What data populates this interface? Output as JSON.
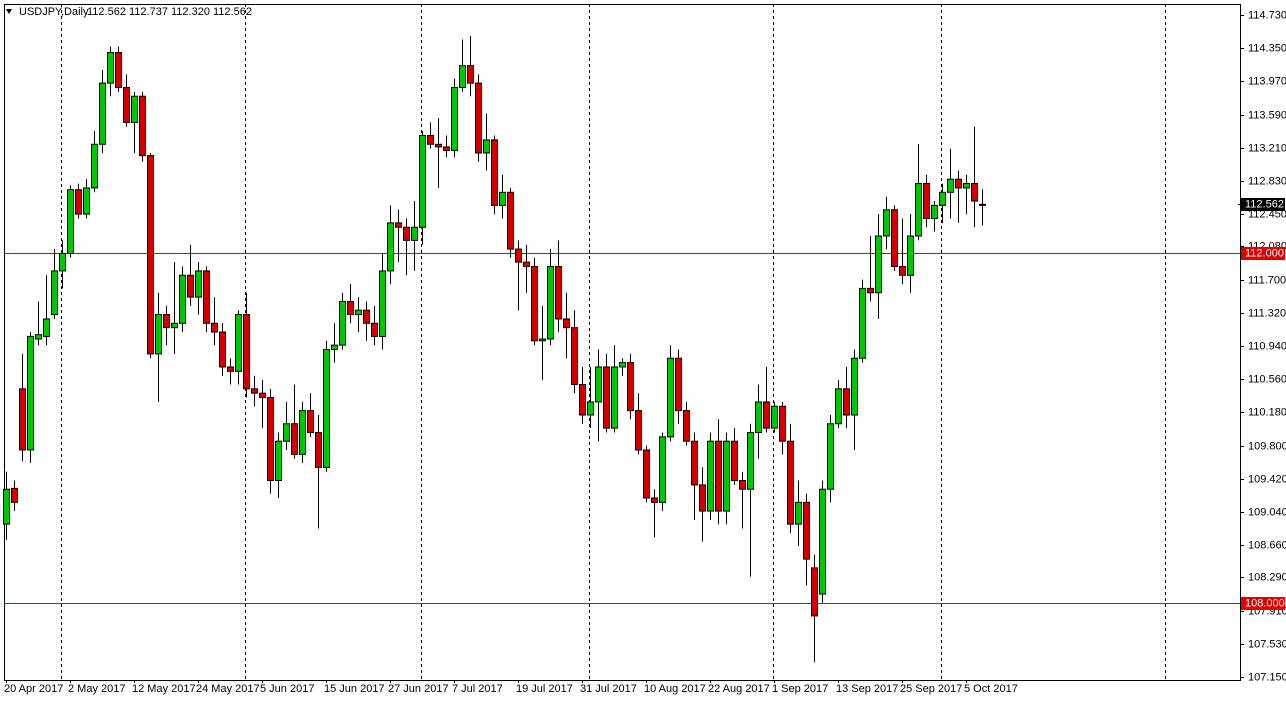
{
  "chart_data": {
    "type": "candlestick",
    "title": "USDJPY,Daily",
    "header_values": "112.562 112.737 112.320 112.562",
    "categories": [
      "20 Apr 2017",
      null,
      null,
      null,
      null,
      null,
      null,
      null,
      "2 May 2017",
      null,
      null,
      null,
      null,
      null,
      null,
      null,
      "12 May 2017",
      null,
      null,
      null,
      null,
      null,
      null,
      null,
      "24 May 2017",
      null,
      null,
      null,
      null,
      null,
      null,
      null,
      "5 Jun 2017",
      null,
      null,
      null,
      null,
      null,
      null,
      null,
      "15 Jun 2017",
      null,
      null,
      null,
      null,
      null,
      null,
      null,
      "27 Jun 2017",
      null,
      null,
      null,
      null,
      null,
      null,
      null,
      "7 Jul 2017",
      null,
      null,
      null,
      null,
      null,
      null,
      null,
      "19 Jul 2017",
      null,
      null,
      null,
      null,
      null,
      null,
      null,
      "31 Jul 2017",
      null,
      null,
      null,
      null,
      null,
      null,
      null,
      "10 Aug 2017",
      null,
      null,
      null,
      null,
      null,
      null,
      null,
      "22 Aug 2017",
      null,
      null,
      null,
      null,
      null,
      null,
      null,
      "1 Sep 2017",
      null,
      null,
      null,
      null,
      null,
      null,
      null,
      "13 Sep 2017",
      null,
      null,
      null,
      null,
      null,
      null,
      null,
      "25 Sep 2017",
      null,
      null,
      null,
      null,
      null,
      null,
      null,
      "5 Oct 2017",
      null,
      null
    ],
    "open": [
      108.9,
      109.31,
      110.45,
      109.75,
      111.02,
      111.05,
      111.3,
      111.8,
      112.0,
      112.73,
      112.45,
      112.75,
      113.25,
      113.95,
      114.3,
      113.9,
      113.5,
      113.8,
      113.12,
      110.85,
      111.3,
      111.15,
      111.2,
      111.75,
      111.5,
      111.8,
      111.2,
      111.1,
      110.7,
      110.65,
      111.3,
      110.45,
      110.4,
      110.35,
      109.4,
      109.85,
      110.05,
      109.7,
      110.2,
      109.95,
      109.55,
      110.9,
      110.95,
      111.45,
      111.3,
      111.35,
      111.2,
      111.05,
      111.8,
      112.35,
      112.3,
      112.15,
      112.3,
      113.35,
      113.25,
      113.22,
      113.18,
      113.9,
      114.15,
      113.95,
      113.15,
      113.3,
      112.55,
      112.7,
      112.05,
      111.9,
      111.85,
      111.0,
      111.02,
      111.85,
      111.25,
      111.15,
      110.5,
      110.15,
      110.3,
      110.7,
      110.0,
      110.7,
      110.75,
      110.2,
      109.75,
      109.2,
      109.15,
      109.9,
      110.8,
      110.2,
      109.85,
      109.35,
      109.05,
      109.85,
      109.05,
      109.85,
      109.4,
      109.3,
      109.95,
      110.3,
      110.0,
      110.25,
      109.85,
      108.9,
      109.15,
      108.4,
      108.1,
      109.3,
      110.05,
      110.45,
      110.15,
      110.8,
      111.6,
      111.55,
      112.2,
      112.5,
      111.85,
      111.75,
      112.2,
      112.8,
      112.4,
      112.55,
      112.7,
      112.85,
      112.75,
      112.8,
      112.562
    ],
    "high": [
      109.5,
      109.4,
      110.85,
      111.1,
      111.45,
      111.75,
      112.05,
      112.15,
      112.78,
      112.8,
      112.85,
      113.4,
      114.1,
      114.37,
      114.37,
      114.05,
      113.85,
      113.85,
      113.15,
      111.55,
      111.4,
      111.9,
      111.85,
      112.1,
      111.9,
      111.85,
      111.5,
      111.2,
      110.8,
      111.35,
      111.55,
      110.6,
      110.55,
      110.45,
      109.95,
      110.3,
      110.5,
      110.3,
      110.4,
      110.15,
      111.0,
      111.2,
      111.55,
      111.65,
      111.5,
      111.45,
      111.4,
      112.0,
      112.55,
      112.5,
      112.4,
      112.6,
      113.4,
      113.5,
      113.55,
      113.35,
      114.0,
      114.45,
      114.49,
      114.05,
      113.6,
      113.35,
      112.9,
      112.75,
      112.15,
      112.1,
      111.95,
      111.4,
      112.05,
      112.15,
      111.55,
      111.35,
      110.7,
      110.7,
      110.9,
      110.85,
      110.95,
      110.8,
      110.85,
      110.4,
      109.8,
      109.3,
      109.95,
      110.95,
      110.9,
      110.3,
      109.95,
      109.55,
      109.95,
      110.1,
      109.95,
      110.0,
      109.5,
      110.05,
      110.5,
      110.7,
      110.3,
      110.3,
      110.05,
      109.4,
      109.25,
      108.55,
      109.4,
      110.15,
      110.55,
      110.7,
      110.9,
      111.7,
      112.2,
      112.45,
      112.65,
      112.55,
      112.4,
      112.45,
      113.25,
      112.9,
      112.6,
      112.8,
      113.2,
      112.95,
      112.9,
      113.45,
      112.737
    ],
    "low": [
      108.72,
      109.05,
      109.62,
      109.6,
      110.95,
      110.95,
      111.25,
      111.6,
      111.95,
      112.4,
      112.4,
      112.7,
      113.15,
      113.8,
      113.85,
      113.45,
      113.15,
      113.05,
      110.8,
      110.3,
      110.95,
      110.85,
      111.1,
      111.4,
      111.3,
      111.1,
      110.95,
      110.6,
      110.5,
      110.5,
      110.35,
      110.25,
      110.0,
      109.25,
      109.2,
      109.75,
      109.65,
      109.6,
      109.9,
      108.85,
      109.5,
      110.75,
      110.9,
      111.2,
      111.1,
      111.0,
      110.95,
      110.9,
      111.65,
      111.9,
      111.75,
      111.8,
      112.1,
      113.2,
      112.75,
      113.1,
      113.1,
      113.85,
      113.8,
      113.05,
      112.95,
      112.45,
      112.4,
      111.95,
      111.35,
      111.55,
      110.95,
      110.55,
      110.95,
      111.1,
      110.8,
      110.4,
      110.05,
      110.0,
      109.85,
      109.95,
      109.95,
      110.6,
      110.1,
      109.7,
      109.15,
      108.75,
      109.05,
      109.85,
      110.05,
      109.8,
      108.95,
      108.7,
      108.95,
      108.9,
      108.9,
      109.35,
      108.85,
      108.3,
      109.65,
      109.95,
      109.95,
      109.7,
      108.8,
      108.65,
      108.2,
      107.32,
      108.0,
      109.15,
      110.0,
      110.0,
      109.75,
      110.75,
      111.45,
      111.25,
      112.05,
      111.8,
      111.65,
      111.55,
      112.15,
      112.3,
      112.25,
      112.35,
      112.4,
      112.35,
      112.45,
      112.3,
      112.32
    ],
    "close": [
      109.3,
      109.15,
      109.75,
      111.05,
      111.07,
      111.25,
      111.8,
      112.0,
      112.73,
      112.45,
      112.75,
      113.25,
      113.95,
      114.3,
      113.9,
      113.5,
      113.8,
      113.12,
      110.85,
      111.3,
      111.15,
      111.2,
      111.75,
      111.5,
      111.8,
      111.2,
      111.1,
      110.7,
      110.65,
      111.3,
      110.45,
      110.4,
      110.35,
      109.4,
      109.85,
      110.05,
      109.7,
      110.2,
      109.95,
      109.55,
      110.9,
      110.95,
      111.45,
      111.3,
      111.35,
      111.2,
      111.05,
      111.8,
      112.35,
      112.3,
      112.15,
      112.3,
      113.35,
      113.25,
      113.22,
      113.18,
      113.9,
      114.15,
      113.95,
      113.15,
      113.3,
      112.55,
      112.7,
      112.05,
      111.9,
      111.85,
      111.0,
      111.02,
      111.85,
      111.25,
      111.15,
      110.5,
      110.15,
      110.3,
      110.7,
      110.0,
      110.7,
      110.75,
      110.2,
      109.75,
      109.2,
      109.15,
      109.9,
      110.8,
      110.2,
      109.85,
      109.35,
      109.05,
      109.85,
      109.05,
      109.85,
      109.4,
      109.3,
      109.95,
      110.3,
      110.0,
      110.25,
      109.85,
      108.9,
      109.15,
      108.5,
      107.85,
      109.3,
      110.05,
      110.45,
      110.15,
      110.8,
      111.6,
      111.55,
      112.2,
      112.5,
      111.85,
      111.75,
      112.2,
      112.8,
      112.4,
      112.55,
      112.7,
      112.85,
      112.75,
      112.8,
      112.6,
      112.562
    ],
    "up_color": "#00c800",
    "down_color": "#d40000",
    "ylim": [
      107.116,
      114.856
    ],
    "yticks": [
      {
        "value": 114.73,
        "label": "114.730"
      },
      {
        "value": 114.35,
        "label": "114.350"
      },
      {
        "value": 113.97,
        "label": "113.970"
      },
      {
        "value": 113.59,
        "label": "113.590"
      },
      {
        "value": 113.21,
        "label": "113.210"
      },
      {
        "value": 112.83,
        "label": "112.830"
      },
      {
        "value": 112.45,
        "label": "112.450"
      },
      {
        "value": 112.08,
        "label": "112.080"
      },
      {
        "value": 111.7,
        "label": "111.700"
      },
      {
        "value": 111.32,
        "label": "111.320"
      },
      {
        "value": 110.94,
        "label": "110.940"
      },
      {
        "value": 110.56,
        "label": "110.560"
      },
      {
        "value": 110.18,
        "label": "110.180"
      },
      {
        "value": 109.8,
        "label": "109.800"
      },
      {
        "value": 109.42,
        "label": "109.420"
      },
      {
        "value": 109.04,
        "label": "109.040"
      },
      {
        "value": 108.66,
        "label": "108.660"
      },
      {
        "value": 108.29,
        "label": "108.290"
      },
      {
        "value": 107.91,
        "label": "107.910"
      },
      {
        "value": 107.53,
        "label": "107.530"
      },
      {
        "value": 107.15,
        "label": "107.150"
      }
    ],
    "horizontal_lines": [
      {
        "value": 112,
        "label": "112.000"
      },
      {
        "value": 108,
        "label": "108.000"
      }
    ],
    "line_color": "#e00000",
    "price_marker": {
      "value": 112.562,
      "label": "112.562"
    },
    "grid": false
  }
}
